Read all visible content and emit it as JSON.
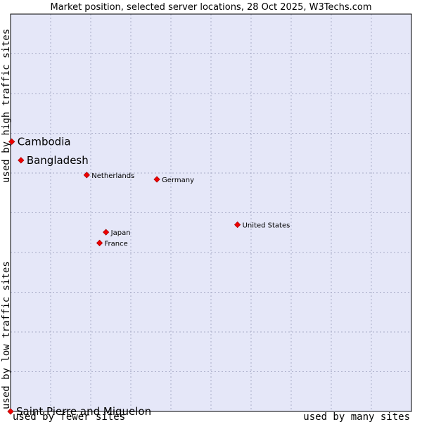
{
  "chart_data": {
    "type": "scatter",
    "title": "Market position, selected server locations, 28 Oct 2025, W3Techs.com",
    "xlabel_low": "used by fewer sites",
    "xlabel_high": "used by many sites",
    "ylabel_low": "used by low traffic sites",
    "ylabel_high": "used by high traffic sites",
    "xlim": [
      0,
      100
    ],
    "ylim": [
      0,
      100
    ],
    "grid": true,
    "colors": {
      "plot_bg": "#e5e7f8",
      "grid": "#a9acc8",
      "point": "#ee0000",
      "point_outline": "#990000",
      "border": "#000000"
    },
    "points": [
      {
        "label": "Cambodia",
        "x": 0.3,
        "y": 67.9,
        "size": "large"
      },
      {
        "label": "Bangladesh",
        "x": 2.6,
        "y": 63.2,
        "size": "large"
      },
      {
        "label": "Netherlands",
        "x": 19.0,
        "y": 59.5,
        "size": "small"
      },
      {
        "label": "Germany",
        "x": 36.5,
        "y": 58.4,
        "size": "small"
      },
      {
        "label": "United States",
        "x": 56.6,
        "y": 47.0,
        "size": "small"
      },
      {
        "label": "Japan",
        "x": 23.8,
        "y": 45.1,
        "size": "small"
      },
      {
        "label": "France",
        "x": 22.2,
        "y": 42.4,
        "size": "small"
      },
      {
        "label": "Saint Pierre and Miquelon",
        "x": 0.0,
        "y": 0.0,
        "size": "large"
      }
    ]
  }
}
